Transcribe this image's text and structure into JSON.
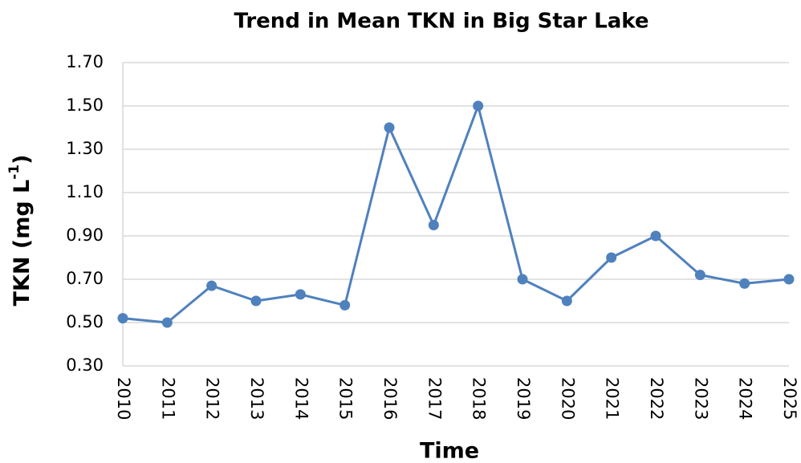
{
  "chart_data": {
    "type": "line",
    "title": "Trend in Mean TKN in Big Star Lake",
    "x_label": "Time",
    "y_label": {
      "text": "TKN (mg L",
      "superscript": "-1",
      "suffix": ")"
    },
    "categories": [
      "2010",
      "2011",
      "2012",
      "2013",
      "2014",
      "2015",
      "2016",
      "2017",
      "2018",
      "2019",
      "2020",
      "2021",
      "2022",
      "2023",
      "2024",
      "2025"
    ],
    "series": [
      {
        "name": "Mean TKN",
        "color": "#4f81bd",
        "values": [
          0.52,
          0.5,
          0.67,
          0.6,
          0.63,
          0.58,
          1.4,
          0.95,
          1.5,
          0.7,
          0.6,
          0.8,
          0.9,
          0.72,
          0.68,
          0.7
        ]
      }
    ],
    "ylim": [
      0.3,
      1.7
    ],
    "yticks": [
      {
        "value": 0.3,
        "label": "0.30"
      },
      {
        "value": 0.5,
        "label": "0.50"
      },
      {
        "value": 0.7,
        "label": "0.70"
      },
      {
        "value": 0.9,
        "label": "0.90"
      },
      {
        "value": 1.1,
        "label": "1.10"
      },
      {
        "value": 1.3,
        "label": "1.30"
      },
      {
        "value": 1.5,
        "label": "1.50"
      },
      {
        "value": 1.7,
        "label": "1.70"
      }
    ],
    "grid": true
  }
}
